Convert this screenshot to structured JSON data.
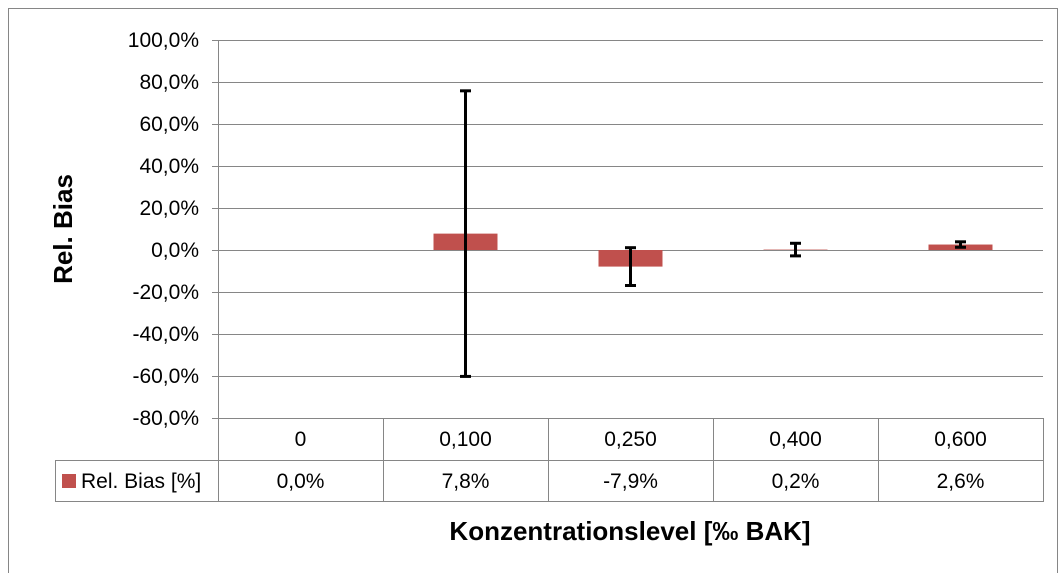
{
  "chart_data": {
    "type": "bar",
    "categories": [
      "0",
      "0,100",
      "0,250",
      "0,400",
      "0,600"
    ],
    "series": [
      {
        "name": "Rel. Bias [%]",
        "values": [
          0.0,
          7.8,
          -7.9,
          0.2,
          2.6
        ],
        "value_labels": [
          "0,0%",
          "7,8%",
          "-7,9%",
          "0,2%",
          "2,6%"
        ],
        "error_plus_minus": [
          0,
          68,
          9,
          3,
          1.3
        ],
        "color": "#C0504D"
      }
    ],
    "xlabel": "Konzentrationslevel [‰ BAK]",
    "ylabel": "Rel. Bias",
    "ylim": [
      -80,
      100
    ],
    "yticks": [
      100,
      80,
      60,
      40,
      20,
      0,
      -20,
      -40,
      -60,
      -80
    ],
    "ytick_labels": [
      "100,0%",
      "80,0%",
      "60,0%",
      "40,0%",
      "20,0%",
      "0,0%",
      "-20,0%",
      "-40,0%",
      "-60,0%",
      "-80,0%"
    ],
    "grid": true,
    "legend": "bottom-left"
  }
}
